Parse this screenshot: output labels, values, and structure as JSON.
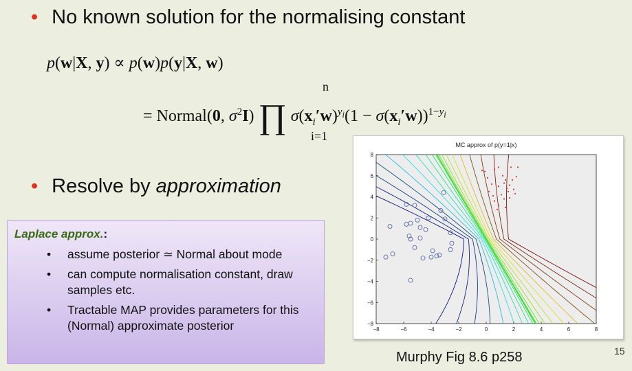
{
  "bullets": {
    "b1": "No known solution for the normalising constant",
    "b2_prefix": "Resolve by ",
    "b2_em": "approximation",
    "bullet_color": "#e0321c"
  },
  "equation": {
    "lhs": "p(w|X, y)",
    "relation": "∝",
    "rhs1": "p(w)p(y|X, w)",
    "line2": "= Normal(0, σ²I) ∏ σ(x′ᵢw)^yᵢ (1 − σ(x′ᵢw))^(1−yᵢ)",
    "prod_upper": "n",
    "prod_lower": "i=1"
  },
  "laplace": {
    "title": "Laplace approx.",
    "title_suffix": ":",
    "title_color": "#3a6b13",
    "items": [
      "assume posterior ≃ Normal about mode",
      "can compute normalisation constant, draw samples etc.",
      "Tractable MAP provides parameters for this (Normal) approximate posterior"
    ]
  },
  "figure": {
    "caption": "Murphy Fig 8.6 p258",
    "page_number": "15"
  },
  "chart_data": {
    "type": "contour",
    "title": "MC approx of p(y=1|x)",
    "xlabel": "",
    "ylabel": "",
    "xlim": [
      -8,
      8
    ],
    "ylim": [
      -8,
      8
    ],
    "xticks": [
      -8,
      -6,
      -4,
      -2,
      0,
      2,
      4,
      6,
      8
    ],
    "yticks": [
      -8,
      -6,
      -4,
      -2,
      0,
      2,
      4,
      6,
      8
    ],
    "grid": false,
    "series": [
      {
        "name": "",
        "marker": "circle",
        "color": "#5a6aa8",
        "points": [
          [
            -5.8,
            3.3
          ],
          [
            -5.2,
            3.2
          ],
          [
            -3.1,
            4.4
          ],
          [
            -3.3,
            2.7
          ],
          [
            -4.2,
            2.0
          ],
          [
            -5.0,
            1.8
          ],
          [
            -5.5,
            1.5
          ],
          [
            -7.0,
            1.2
          ],
          [
            -5.8,
            1.4
          ],
          [
            -4.8,
            1.1
          ],
          [
            -4.4,
            0.9
          ],
          [
            -3.0,
            1.9
          ],
          [
            -5.6,
            0.3
          ],
          [
            -4.8,
            0.1
          ],
          [
            -5.5,
            0.0
          ],
          [
            -2.6,
            0.6
          ],
          [
            -2.5,
            -0.4
          ],
          [
            -5.2,
            -0.8
          ],
          [
            -3.9,
            -1.1
          ],
          [
            -3.4,
            -1.5
          ],
          [
            -2.6,
            -1.0
          ],
          [
            -6.8,
            -1.4
          ],
          [
            -7.3,
            -1.7
          ],
          [
            -4.0,
            -1.7
          ],
          [
            -4.6,
            -1.8
          ],
          [
            -3.6,
            -1.6
          ],
          [
            -5.5,
            -3.9
          ]
        ]
      },
      {
        "name": "",
        "marker": "dot",
        "color": "#d23a3a",
        "points": [
          [
            -0.3,
            6.5
          ],
          [
            -0.1,
            6.4
          ],
          [
            0.1,
            5.8
          ],
          [
            0.6,
            6.6
          ],
          [
            0.9,
            6.8
          ],
          [
            1.2,
            6.0
          ],
          [
            1.4,
            5.6
          ],
          [
            1.8,
            6.8
          ],
          [
            2.3,
            6.8
          ],
          [
            0.4,
            5.2
          ],
          [
            0.9,
            5.0
          ],
          [
            1.3,
            5.3
          ],
          [
            1.7,
            5.1
          ],
          [
            1.9,
            5.6
          ],
          [
            2.2,
            5.9
          ],
          [
            1.5,
            4.8
          ],
          [
            2.0,
            4.7
          ],
          [
            1.6,
            4.5
          ],
          [
            2.1,
            4.3
          ],
          [
            1.1,
            4.2
          ],
          [
            0.6,
            3.6
          ],
          [
            1.3,
            3.8
          ],
          [
            1.7,
            3.9
          ],
          [
            0.9,
            3.2
          ],
          [
            1.4,
            3.0
          ],
          [
            0.2,
            4.5
          ],
          [
            0.5,
            4.1
          ],
          [
            0.8,
            2.8
          ]
        ]
      }
    ]
  }
}
